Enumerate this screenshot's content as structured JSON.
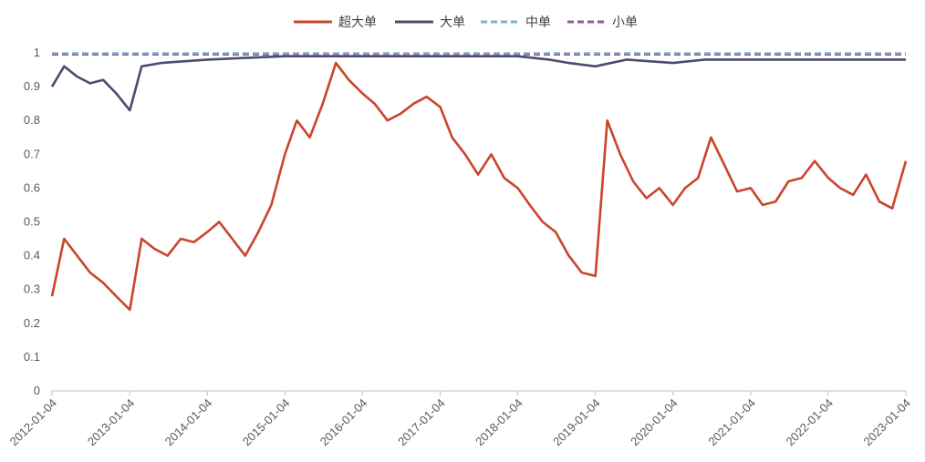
{
  "chart_data": {
    "type": "line",
    "title": "",
    "xlabel": "",
    "ylabel": "",
    "ylim": [
      0,
      1
    ],
    "y_ticks": [
      0,
      0.1,
      0.2,
      0.3,
      0.4,
      0.5,
      0.6,
      0.7,
      0.8,
      0.9,
      1
    ],
    "y_tick_labels": [
      "0",
      "0.1",
      "0.2",
      "0.3",
      "0.4",
      "0.5",
      "0.6",
      "0.7",
      "0.8",
      "0.9",
      "1"
    ],
    "x_range": [
      "2012-01-04",
      "2023-01-04"
    ],
    "x_tick_labels": [
      "2012-01-04",
      "2013-01-04",
      "2014-01-04",
      "2015-01-04",
      "2016-01-04",
      "2017-01-04",
      "2018-01-04",
      "2019-01-04",
      "2020-01-04",
      "2021-01-04",
      "2022-01-04",
      "2023-01-04"
    ],
    "grid": false,
    "legend_position": "top-center",
    "series": [
      {
        "name": "超大单",
        "color": "#C9452B",
        "style": "solid",
        "x": [
          "2012-01-04",
          "2012-03-01",
          "2012-05-01",
          "2012-07-01",
          "2012-09-01",
          "2012-11-01",
          "2013-01-04",
          "2013-03-01",
          "2013-05-01",
          "2013-07-01",
          "2013-09-01",
          "2013-11-01",
          "2014-01-04",
          "2014-03-01",
          "2014-05-01",
          "2014-07-01",
          "2014-09-01",
          "2014-11-01",
          "2015-01-04",
          "2015-03-01",
          "2015-05-01",
          "2015-07-01",
          "2015-09-01",
          "2015-11-01",
          "2016-01-04",
          "2016-03-01",
          "2016-05-01",
          "2016-07-01",
          "2016-09-01",
          "2016-11-01",
          "2017-01-04",
          "2017-03-01",
          "2017-05-01",
          "2017-07-01",
          "2017-09-01",
          "2017-11-01",
          "2018-01-04",
          "2018-03-01",
          "2018-05-01",
          "2018-07-01",
          "2018-09-01",
          "2018-11-01",
          "2019-01-04",
          "2019-03-01",
          "2019-05-01",
          "2019-07-01",
          "2019-09-01",
          "2019-11-01",
          "2020-01-04",
          "2020-03-01",
          "2020-05-01",
          "2020-07-01",
          "2020-09-01",
          "2020-11-01",
          "2021-01-04",
          "2021-03-01",
          "2021-05-01",
          "2021-07-01",
          "2021-09-01",
          "2021-11-01",
          "2022-01-04",
          "2022-03-01",
          "2022-05-01",
          "2022-07-01",
          "2022-09-01",
          "2022-11-01",
          "2023-01-04"
        ],
        "values": [
          0.28,
          0.45,
          0.4,
          0.35,
          0.32,
          0.28,
          0.24,
          0.45,
          0.42,
          0.4,
          0.45,
          0.44,
          0.47,
          0.5,
          0.45,
          0.4,
          0.47,
          0.55,
          0.7,
          0.8,
          0.75,
          0.85,
          0.97,
          0.92,
          0.88,
          0.85,
          0.8,
          0.82,
          0.85,
          0.87,
          0.84,
          0.75,
          0.7,
          0.64,
          0.7,
          0.63,
          0.6,
          0.55,
          0.5,
          0.47,
          0.4,
          0.35,
          0.34,
          0.8,
          0.7,
          0.62,
          0.57,
          0.6,
          0.55,
          0.6,
          0.63,
          0.75,
          0.67,
          0.59,
          0.6,
          0.55,
          0.56,
          0.62,
          0.63,
          0.68,
          0.63,
          0.6,
          0.58,
          0.64,
          0.56,
          0.54,
          0.68
        ]
      },
      {
        "name": "大单",
        "color": "#4F4A6E",
        "style": "solid",
        "x": [
          "2012-01-04",
          "2012-03-01",
          "2012-05-01",
          "2012-07-01",
          "2012-09-01",
          "2012-11-01",
          "2013-01-04",
          "2013-03-01",
          "2013-06-01",
          "2014-01-04",
          "2015-01-04",
          "2016-01-04",
          "2017-01-04",
          "2018-01-04",
          "2018-06-01",
          "2018-09-01",
          "2019-01-04",
          "2019-06-01",
          "2020-01-04",
          "2020-06-01",
          "2021-01-04",
          "2022-01-04",
          "2022-06-01",
          "2023-01-04"
        ],
        "values": [
          0.9,
          0.96,
          0.93,
          0.91,
          0.92,
          0.88,
          0.83,
          0.96,
          0.97,
          0.98,
          0.99,
          0.99,
          0.99,
          0.99,
          0.98,
          0.97,
          0.96,
          0.98,
          0.97,
          0.98,
          0.98,
          0.98,
          0.98,
          0.98
        ]
      },
      {
        "name": "中单",
        "color": "#7FB2C8",
        "style": "dashed",
        "x": [
          "2012-01-04",
          "2023-01-04"
        ],
        "values": [
          0.999,
          0.999
        ]
      },
      {
        "name": "小单",
        "color": "#8E5A9E",
        "style": "dashed",
        "x": [
          "2012-01-04",
          "2023-01-04"
        ],
        "values": [
          0.995,
          0.995
        ]
      }
    ]
  }
}
